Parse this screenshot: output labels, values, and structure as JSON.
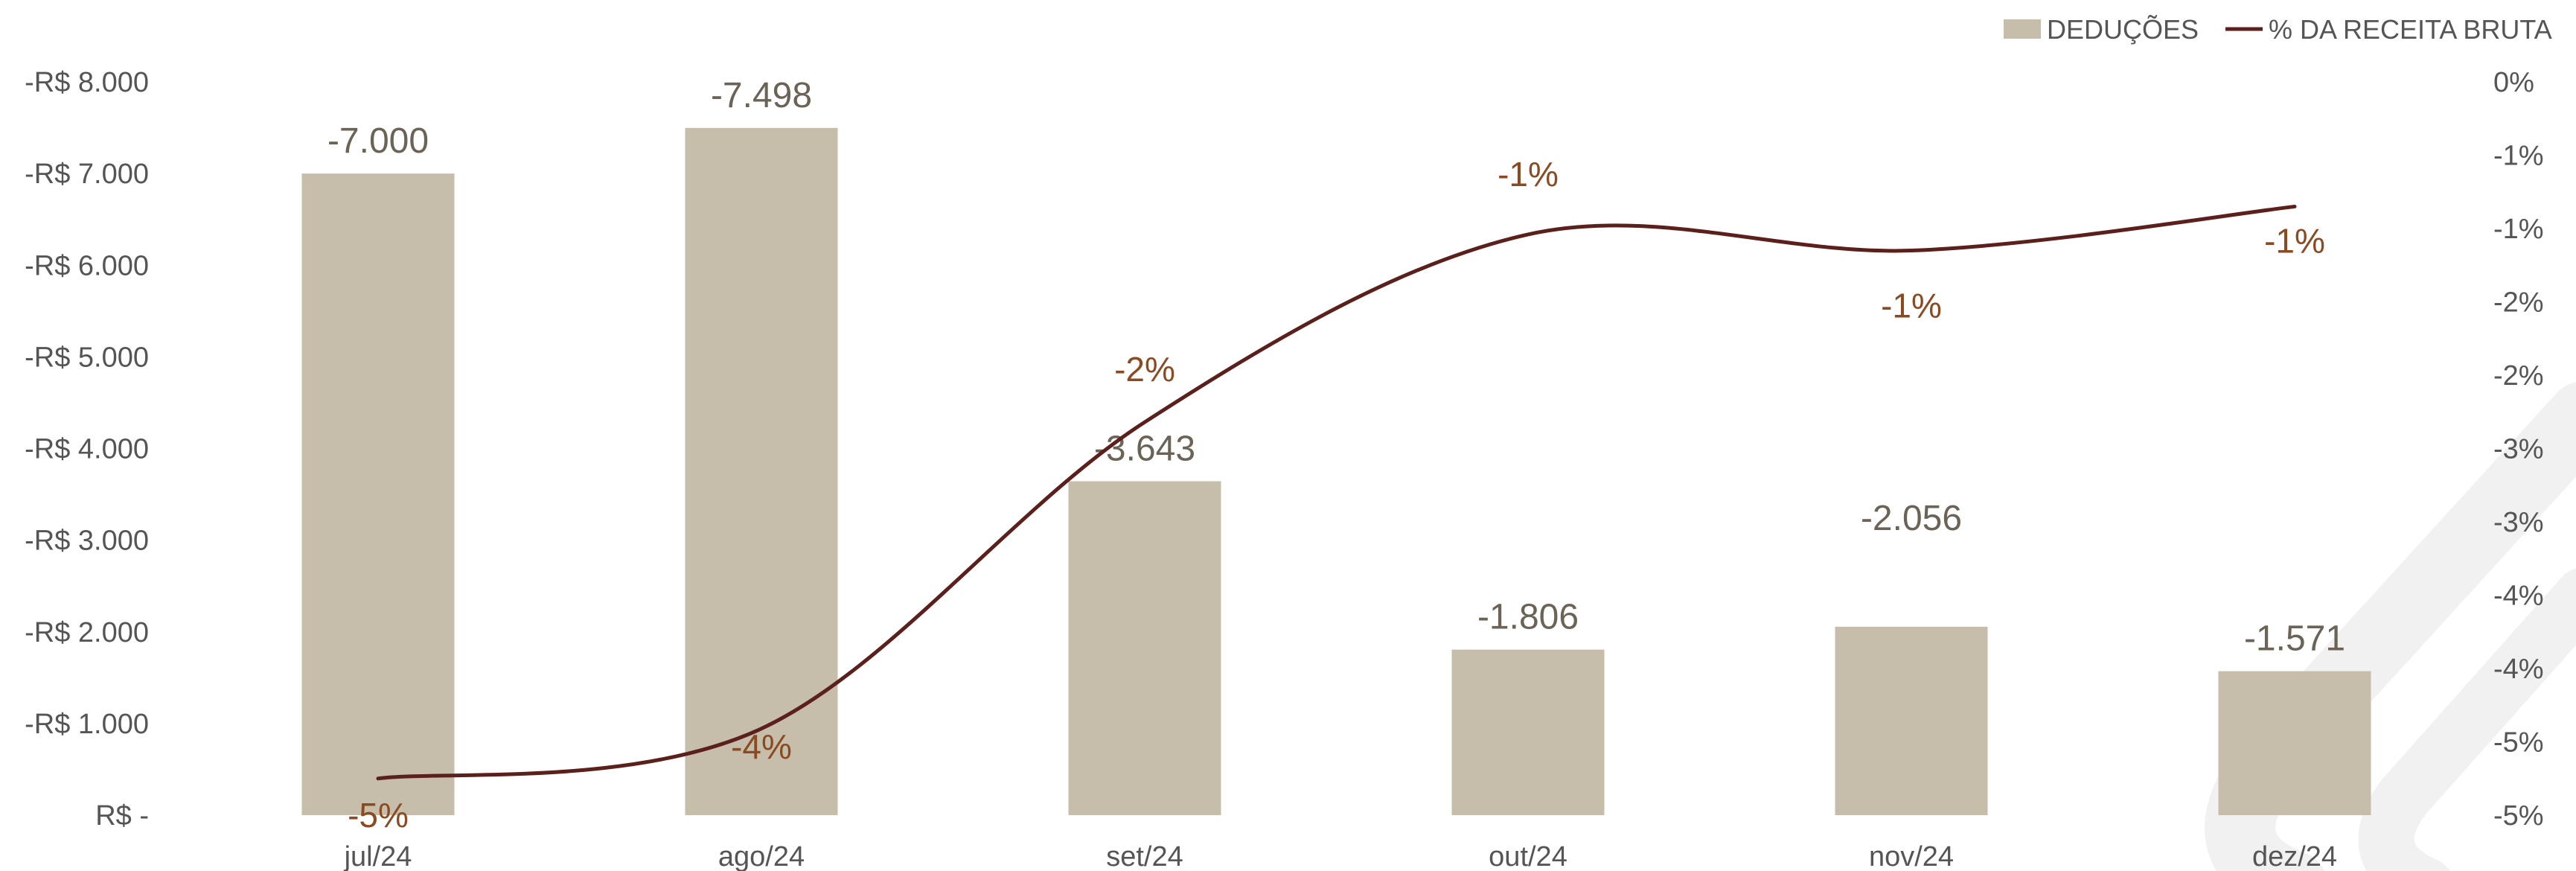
{
  "chart_data": {
    "type": "bar",
    "categories": [
      "jul/24",
      "ago/24",
      "set/24",
      "out/24",
      "nov/24",
      "dez/24"
    ],
    "series": [
      {
        "name": "DEDUÇÕES",
        "type": "bar",
        "axis": "left",
        "values": [
          -7000,
          -7498,
          -3643,
          -1806,
          -2056,
          -1571
        ],
        "labels": [
          "-7.000",
          "-7.498",
          "-3.643",
          "-1.806",
          "-2.056",
          "-1.571"
        ]
      },
      {
        "name": "% DA RECEITA BRUTA",
        "type": "line",
        "axis": "right",
        "values": [
          -0.0475,
          -0.0441,
          -0.0232,
          -0.0104,
          -0.0115,
          -0.0085
        ],
        "labels": [
          "-5%",
          "-4%",
          "-2%",
          "-1%",
          "-1%",
          "-1%"
        ]
      }
    ],
    "y_left": {
      "ticks": [
        0,
        -1000,
        -2000,
        -3000,
        -4000,
        -5000,
        -6000,
        -7000,
        -8000
      ],
      "tick_labels": [
        "R$ -",
        "-R$ 1.000",
        "-R$ 2.000",
        "-R$ 3.000",
        "-R$ 4.000",
        "-R$ 5.000",
        "-R$ 6.000",
        "-R$ 7.000",
        "-R$ 8.000"
      ],
      "range": [
        0,
        -8000
      ]
    },
    "y_right": {
      "ticks": [
        -0.05,
        -0.045,
        -0.04,
        -0.035,
        -0.03,
        -0.025,
        -0.02,
        -0.015,
        -0.01,
        -0.005,
        0
      ],
      "tick_labels": [
        "-5%",
        "-5%",
        "-4%",
        "-4%",
        "-3%",
        "-3%",
        "-2%",
        "-2%",
        "-1%",
        "-1%",
        "0%"
      ],
      "range": [
        -0.05,
        0
      ]
    },
    "legend": {
      "position": "top-right"
    },
    "grid": false,
    "colors": {
      "bar": "#c6beab",
      "line": "#5b1f1c",
      "bar_label": "#6a6356",
      "pct_label": "#8a4a22",
      "watermark": "#f1f1f1"
    }
  }
}
